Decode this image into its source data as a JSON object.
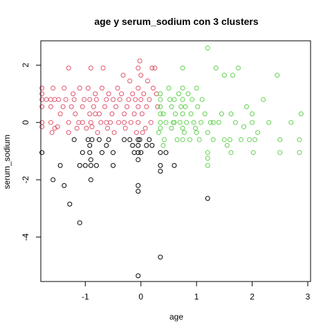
{
  "chart_data": {
    "type": "scatter",
    "title": "age  y  serum_sodium con  3  clusters",
    "xlabel": "age",
    "ylabel": "serum_sodium",
    "xlim": [
      -1.8,
      3.05
    ],
    "ylim": [
      -5.55,
      2.85
    ],
    "x_ticks": [
      -1,
      0,
      1,
      2,
      3
    ],
    "x_tick_labels": [
      "-1",
      "0",
      "1",
      "2",
      "3"
    ],
    "y_ticks": [
      -4,
      -2,
      0,
      2
    ],
    "y_tick_labels": [
      "-4",
      "-2",
      "0",
      "2"
    ],
    "grid": false,
    "legend": "none",
    "marker": "open-circle",
    "series": [
      {
        "color": "#DF536B",
        "points": [
          [
            -1.78,
            1.2
          ],
          [
            -1.78,
            1.0
          ],
          [
            -1.78,
            0.8
          ],
          [
            -1.78,
            0.55
          ],
          [
            -1.78,
            0.0
          ],
          [
            -1.78,
            -0.15
          ],
          [
            -1.7,
            0.8
          ],
          [
            -1.62,
            0.8
          ],
          [
            -1.62,
            0.55
          ],
          [
            -1.62,
            0.0
          ],
          [
            -1.58,
            1.2
          ],
          [
            -1.55,
            0.8
          ],
          [
            -1.55,
            -0.2
          ],
          [
            -1.48,
            0.8
          ],
          [
            -1.45,
            0.3
          ],
          [
            -1.4,
            0.55
          ],
          [
            -1.38,
            1.2
          ],
          [
            -1.35,
            0.8
          ],
          [
            -1.3,
            1.9
          ],
          [
            -1.3,
            0.0
          ],
          [
            -1.3,
            -0.35
          ],
          [
            -1.25,
            0.55
          ],
          [
            -1.22,
            1.0
          ],
          [
            -1.2,
            0.8
          ],
          [
            -1.18,
            0.3
          ],
          [
            -1.12,
            0.0
          ],
          [
            -1.1,
            1.2
          ],
          [
            -1.05,
            0.55
          ],
          [
            -1.05,
            0.0
          ],
          [
            -1.02,
            0.8
          ],
          [
            -0.98,
            -0.2
          ],
          [
            -0.95,
            1.2
          ],
          [
            -0.92,
            0.8
          ],
          [
            -0.92,
            0.3
          ],
          [
            -0.9,
            1.9
          ],
          [
            -0.9,
            0.0
          ],
          [
            -0.88,
            -0.15
          ],
          [
            -0.85,
            0.55
          ],
          [
            -0.82,
            1.0
          ],
          [
            -0.8,
            0.8
          ],
          [
            -0.78,
            -0.35
          ],
          [
            -0.75,
            0.3
          ],
          [
            -0.72,
            0.0
          ],
          [
            -0.7,
            1.2
          ],
          [
            -0.68,
            1.9
          ],
          [
            -0.65,
            0.55
          ],
          [
            -0.62,
            0.8
          ],
          [
            -0.6,
            -0.2
          ],
          [
            -0.58,
            1.0
          ],
          [
            -0.55,
            0.0
          ],
          [
            -0.52,
            0.3
          ],
          [
            -0.5,
            0.8
          ],
          [
            -0.48,
            -0.35
          ],
          [
            -0.45,
            0.55
          ],
          [
            -0.42,
            1.2
          ],
          [
            -0.4,
            0.0
          ],
          [
            -0.38,
            0.8
          ],
          [
            -0.35,
            1.0
          ],
          [
            -0.32,
            1.65
          ],
          [
            -0.3,
            0.3
          ],
          [
            -0.28,
            -0.2
          ],
          [
            -0.25,
            0.55
          ],
          [
            -0.22,
            0.8
          ],
          [
            -0.2,
            1.45
          ],
          [
            -0.18,
            0.0
          ],
          [
            -0.15,
            1.0
          ],
          [
            -0.12,
            0.3
          ],
          [
            -0.1,
            0.8
          ],
          [
            -0.08,
            -0.35
          ],
          [
            -0.05,
            1.9
          ],
          [
            -0.05,
            1.2
          ],
          [
            -0.05,
            0.55
          ],
          [
            -0.05,
            0.0
          ],
          [
            -0.02,
            2.15
          ],
          [
            0.0,
            1.65
          ],
          [
            0.0,
            0.8
          ],
          [
            0.02,
            0.3
          ],
          [
            0.05,
            1.0
          ],
          [
            0.08,
            -0.2
          ],
          [
            0.1,
            0.55
          ],
          [
            0.12,
            1.45
          ],
          [
            0.15,
            0.8
          ],
          [
            0.18,
            0.0
          ],
          [
            0.2,
            1.9
          ],
          [
            0.22,
            1.2
          ],
          [
            0.25,
            1.9
          ],
          [
            0.28,
            1.0
          ],
          [
            0.3,
            0.55
          ],
          [
            -1.5,
            -0.15
          ],
          [
            -1.15,
            -0.2
          ],
          [
            -0.62,
            0.0
          ],
          [
            0.03,
            -0.35
          ],
          [
            -0.82,
            0.3
          ],
          [
            -1.6,
            -0.35
          ],
          [
            -0.3,
            0.0
          ]
        ]
      },
      {
        "color": "#61D04F",
        "points": [
          [
            0.35,
            1.0
          ],
          [
            0.35,
            0.8
          ],
          [
            0.35,
            0.55
          ],
          [
            0.35,
            0.3
          ],
          [
            0.35,
            0.0
          ],
          [
            0.35,
            -0.2
          ],
          [
            0.32,
            -0.35
          ],
          [
            0.4,
            0.3
          ],
          [
            0.42,
            -0.6
          ],
          [
            0.45,
            0.0
          ],
          [
            0.5,
            1.2
          ],
          [
            0.52,
            0.8
          ],
          [
            0.55,
            0.55
          ],
          [
            0.55,
            -0.2
          ],
          [
            0.58,
            0.0
          ],
          [
            0.6,
            0.8
          ],
          [
            0.62,
            0.3
          ],
          [
            0.65,
            -0.6
          ],
          [
            0.68,
            1.0
          ],
          [
            0.7,
            0.0
          ],
          [
            0.72,
            0.55
          ],
          [
            0.75,
            1.9
          ],
          [
            0.75,
            1.2
          ],
          [
            0.75,
            0.8
          ],
          [
            0.75,
            0.3
          ],
          [
            0.75,
            -0.2
          ],
          [
            0.75,
            -0.6
          ],
          [
            0.78,
            -0.35
          ],
          [
            0.8,
            0.55
          ],
          [
            0.82,
            0.0
          ],
          [
            0.85,
            1.0
          ],
          [
            0.88,
            -0.6
          ],
          [
            0.9,
            0.3
          ],
          [
            0.92,
            0.8
          ],
          [
            0.95,
            0.0
          ],
          [
            0.98,
            -0.2
          ],
          [
            1.0,
            1.2
          ],
          [
            1.02,
            0.55
          ],
          [
            1.05,
            -0.6
          ],
          [
            1.08,
            0.0
          ],
          [
            1.1,
            0.8
          ],
          [
            1.15,
            0.3
          ],
          [
            1.2,
            2.6
          ],
          [
            1.2,
            -0.35
          ],
          [
            1.2,
            -1.05
          ],
          [
            1.2,
            -1.25
          ],
          [
            1.2,
            -1.5
          ],
          [
            1.25,
            0.0
          ],
          [
            1.3,
            -0.6
          ],
          [
            1.35,
            1.9
          ],
          [
            1.4,
            0.0
          ],
          [
            1.45,
            0.3
          ],
          [
            1.5,
            1.65
          ],
          [
            1.5,
            -0.6
          ],
          [
            1.55,
            -0.8
          ],
          [
            1.6,
            -0.6
          ],
          [
            1.62,
            0.3
          ],
          [
            1.65,
            1.65
          ],
          [
            1.7,
            0.0
          ],
          [
            1.75,
            1.9
          ],
          [
            1.8,
            -0.6
          ],
          [
            1.85,
            -0.15
          ],
          [
            1.9,
            0.55
          ],
          [
            1.95,
            -0.6
          ],
          [
            2.0,
            0.3
          ],
          [
            2.0,
            0.0
          ],
          [
            2.02,
            -1.05
          ],
          [
            2.05,
            -0.6
          ],
          [
            2.1,
            -0.35
          ],
          [
            2.2,
            0.8
          ],
          [
            2.3,
            0.0
          ],
          [
            2.45,
            1.65
          ],
          [
            2.5,
            -0.6
          ],
          [
            2.5,
            -1.05
          ],
          [
            2.7,
            0.0
          ],
          [
            2.85,
            -0.6
          ],
          [
            2.85,
            -1.05
          ],
          [
            2.88,
            0.3
          ],
          [
            1.62,
            -1.05
          ],
          [
            1.0,
            -0.35
          ],
          [
            0.4,
            -0.8
          ],
          [
            1.3,
            0.0
          ],
          [
            0.6,
            0.0
          ]
        ]
      },
      {
        "color": "#000000",
        "points": [
          [
            -1.78,
            -1.05
          ],
          [
            -1.58,
            -2.0
          ],
          [
            -1.45,
            -1.5
          ],
          [
            -1.38,
            -2.2
          ],
          [
            -1.28,
            -2.85
          ],
          [
            -1.2,
            -0.6
          ],
          [
            -1.1,
            -3.5
          ],
          [
            -1.1,
            -1.5
          ],
          [
            -1.05,
            -1.05
          ],
          [
            -1.0,
            -1.5
          ],
          [
            -0.95,
            -0.6
          ],
          [
            -0.92,
            -0.8
          ],
          [
            -0.92,
            -1.05
          ],
          [
            -0.9,
            -1.3
          ],
          [
            -0.9,
            -1.5
          ],
          [
            -0.9,
            -2.0
          ],
          [
            -0.88,
            -0.6
          ],
          [
            -0.8,
            -1.5
          ],
          [
            -0.75,
            -0.6
          ],
          [
            -0.7,
            -1.05
          ],
          [
            -0.62,
            -0.8
          ],
          [
            -0.58,
            -0.6
          ],
          [
            -0.5,
            -1.05
          ],
          [
            -0.5,
            -1.5
          ],
          [
            -0.3,
            -0.6
          ],
          [
            -0.2,
            -0.6
          ],
          [
            -0.15,
            -0.8
          ],
          [
            -0.12,
            -1.05
          ],
          [
            -0.05,
            -0.6
          ],
          [
            -0.05,
            -0.8
          ],
          [
            -0.05,
            -1.05
          ],
          [
            -0.05,
            -1.3
          ],
          [
            -0.05,
            -2.2
          ],
          [
            -0.05,
            -2.4
          ],
          [
            -0.05,
            -5.35
          ],
          [
            -0.02,
            -0.6
          ],
          [
            0.0,
            -1.05
          ],
          [
            0.1,
            -0.8
          ],
          [
            0.15,
            -0.6
          ],
          [
            0.2,
            -0.8
          ],
          [
            0.35,
            -1.05
          ],
          [
            0.35,
            -1.5
          ],
          [
            0.35,
            -1.7
          ],
          [
            0.35,
            -4.7
          ],
          [
            0.45,
            -1.05
          ],
          [
            0.6,
            -1.5
          ],
          [
            1.2,
            -2.65
          ]
        ]
      }
    ]
  }
}
